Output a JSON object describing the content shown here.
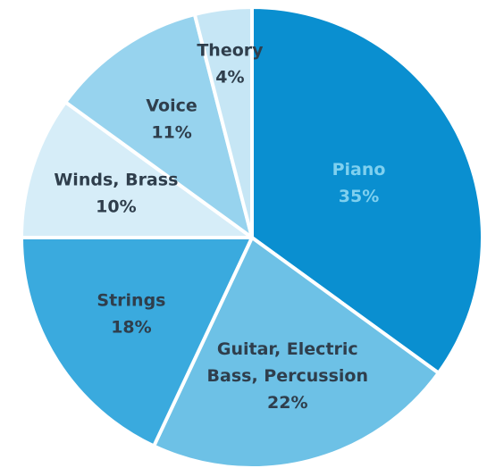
{
  "chart_data": {
    "type": "pie",
    "title": "",
    "start": "12 o'clock",
    "direction": "clockwise",
    "slices": [
      {
        "label_lines": [
          "Piano"
        ],
        "value_label": "35%",
        "value": 35,
        "color": "#0a8fd0",
        "label_color": "#7fd0ef"
      },
      {
        "label_lines": [
          "Guitar, Electric",
          "Bass, Percussion"
        ],
        "value_label": "22%",
        "value": 22,
        "color": "#6dc1e6",
        "label_color": "#2f3e4c"
      },
      {
        "label_lines": [
          "Strings"
        ],
        "value_label": "18%",
        "value": 18,
        "color": "#3aaade",
        "label_color": "#2f3e4c"
      },
      {
        "label_lines": [
          "Winds, Brass"
        ],
        "value_label": "10%",
        "value": 10,
        "color": "#d6edf8",
        "label_color": "#2f3e4c"
      },
      {
        "label_lines": [
          "Voice"
        ],
        "value_label": "11%",
        "value": 11,
        "color": "#97d3ee",
        "label_color": "#2f3e4c"
      },
      {
        "label_lines": [
          "Theory"
        ],
        "value_label": "4%",
        "value": 4,
        "color": "#c6e6f5",
        "label_color": "#2f3e4c"
      }
    ],
    "separator_color": "#ffffff"
  }
}
